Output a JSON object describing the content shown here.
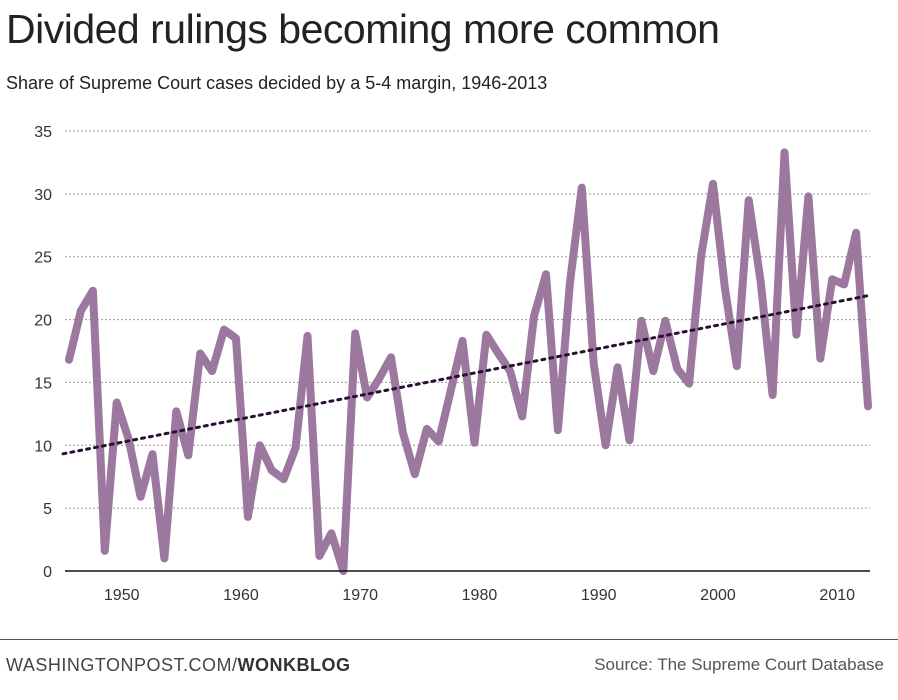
{
  "title": "Divided rulings becoming more common",
  "subtitle": "Share of Supreme Court cases decided by a 5-4 margin, 1946-2013",
  "footer": {
    "brand_prefix": "WASHINGTONPOST.COM/",
    "brand_section": "WONKBLOG",
    "source": "Source: The Supreme Court Database"
  },
  "colors": {
    "line": "#9c789e",
    "trend": "#2a1030",
    "grid": "#999999"
  },
  "chart_data": {
    "type": "line",
    "title": "Divided rulings becoming more common",
    "xlabel": "",
    "ylabel": "",
    "xlim": [
      1946,
      2013
    ],
    "ylim": [
      0,
      35
    ],
    "grid": true,
    "x_ticks": [
      1950,
      1960,
      1970,
      1980,
      1990,
      2000,
      2010
    ],
    "y_ticks": [
      0,
      5,
      10,
      15,
      20,
      25,
      30,
      35
    ],
    "x": [
      1946,
      1947,
      1948,
      1949,
      1950,
      1951,
      1952,
      1953,
      1954,
      1955,
      1956,
      1957,
      1958,
      1959,
      1960,
      1961,
      1962,
      1963,
      1964,
      1965,
      1966,
      1967,
      1968,
      1969,
      1970,
      1971,
      1972,
      1973,
      1974,
      1975,
      1976,
      1977,
      1978,
      1979,
      1980,
      1981,
      1982,
      1983,
      1984,
      1985,
      1986,
      1987,
      1988,
      1989,
      1990,
      1991,
      1992,
      1993,
      1994,
      1995,
      1996,
      1997,
      1998,
      1999,
      2000,
      2001,
      2002,
      2003,
      2004,
      2005,
      2006,
      2007,
      2008,
      2009,
      2010,
      2011,
      2012,
      2013
    ],
    "series": [
      {
        "values": [
          16.8,
          20.7,
          22.3,
          1.6,
          13.4,
          10.5,
          5.9,
          9.3,
          1.0,
          12.7,
          9.2,
          17.3,
          15.9,
          19.2,
          18.5,
          4.3,
          10.0,
          8.0,
          7.3,
          9.8,
          18.7,
          1.2,
          3.0,
          0.0,
          18.9,
          13.8,
          15.3,
          17.0,
          11.0,
          7.7,
          11.3,
          10.3,
          14.3,
          18.3,
          10.2,
          18.8,
          17.3,
          15.9,
          12.3,
          20.3,
          23.6,
          11.2,
          22.9,
          30.5,
          16.5,
          10.0,
          16.2,
          10.4,
          19.9,
          15.9,
          19.9,
          16.1,
          14.9,
          25.0,
          30.8,
          22.5,
          16.3,
          29.5,
          23.0,
          14.0,
          33.3,
          18.8,
          29.8,
          16.9,
          23.2,
          22.8,
          26.9,
          13.1
        ]
      }
    ],
    "trendline": {
      "style": "dotted",
      "values": [
        9.4,
        21.9
      ]
    }
  }
}
